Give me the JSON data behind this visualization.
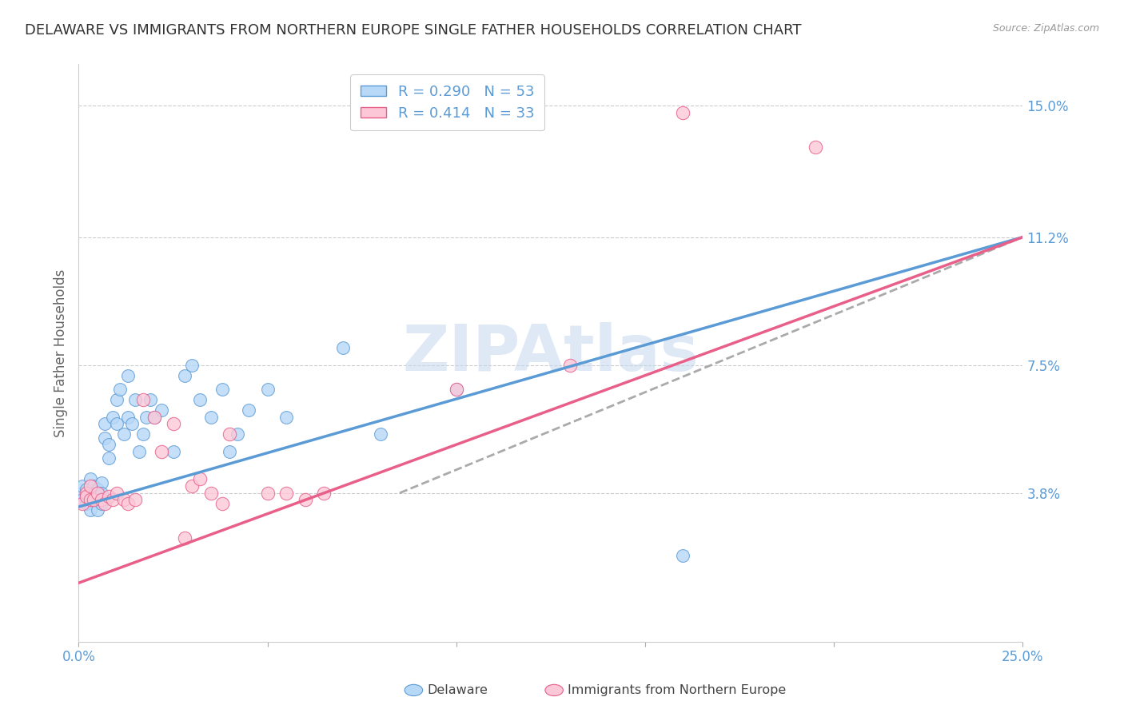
{
  "title": "DELAWARE VS IMMIGRANTS FROM NORTHERN EUROPE SINGLE FATHER HOUSEHOLDS CORRELATION CHART",
  "source": "Source: ZipAtlas.com",
  "ylabel": "Single Father Households",
  "xlim": [
    0.0,
    0.25
  ],
  "ylim": [
    -0.005,
    0.162
  ],
  "xtick_vals": [
    0.0,
    0.05,
    0.1,
    0.15,
    0.2,
    0.25
  ],
  "xtick_labels": [
    "0.0%",
    "",
    "",
    "",
    "",
    "25.0%"
  ],
  "ytick_vals_right": [
    0.038,
    0.075,
    0.112,
    0.15
  ],
  "ytick_labels_right": [
    "3.8%",
    "7.5%",
    "11.2%",
    "15.0%"
  ],
  "del_face": "#b8d8f8",
  "del_edge": "#5b9bd5",
  "imm_face": "#fcc8d8",
  "imm_edge": "#e8608a",
  "del_line_color": "#5b9bd5",
  "imm_line_color": "#e8608a",
  "gray_dash_color": "#aaaaaa",
  "legend_R_del": "0.290",
  "legend_N_del": "53",
  "legend_R_imm": "0.414",
  "legend_N_imm": "33",
  "watermark": "ZIPAtlas",
  "bg_color": "#ffffff",
  "grid_color": "#cccccc",
  "title_fontsize": 13,
  "ylabel_fontsize": 12,
  "tick_fontsize": 12,
  "legend_fontsize": 13,
  "del_x": [
    0.001,
    0.001,
    0.001,
    0.002,
    0.002,
    0.002,
    0.003,
    0.003,
    0.003,
    0.003,
    0.004,
    0.004,
    0.005,
    0.005,
    0.005,
    0.005,
    0.006,
    0.006,
    0.006,
    0.007,
    0.007,
    0.008,
    0.008,
    0.009,
    0.01,
    0.01,
    0.011,
    0.012,
    0.013,
    0.013,
    0.014,
    0.015,
    0.016,
    0.017,
    0.018,
    0.019,
    0.02,
    0.022,
    0.025,
    0.028,
    0.03,
    0.032,
    0.035,
    0.038,
    0.04,
    0.042,
    0.045,
    0.05,
    0.055,
    0.07,
    0.08,
    0.1,
    0.16
  ],
  "del_y": [
    0.038,
    0.04,
    0.036,
    0.037,
    0.039,
    0.035,
    0.042,
    0.038,
    0.036,
    0.033,
    0.04,
    0.038,
    0.039,
    0.037,
    0.036,
    0.033,
    0.041,
    0.038,
    0.035,
    0.058,
    0.054,
    0.048,
    0.052,
    0.06,
    0.065,
    0.058,
    0.068,
    0.055,
    0.072,
    0.06,
    0.058,
    0.065,
    0.05,
    0.055,
    0.06,
    0.065,
    0.06,
    0.062,
    0.05,
    0.072,
    0.075,
    0.065,
    0.06,
    0.068,
    0.05,
    0.055,
    0.062,
    0.068,
    0.06,
    0.08,
    0.055,
    0.068,
    0.02
  ],
  "imm_x": [
    0.001,
    0.002,
    0.002,
    0.003,
    0.003,
    0.004,
    0.005,
    0.006,
    0.007,
    0.008,
    0.009,
    0.01,
    0.012,
    0.013,
    0.015,
    0.017,
    0.02,
    0.022,
    0.025,
    0.028,
    0.03,
    0.032,
    0.035,
    0.038,
    0.04,
    0.05,
    0.055,
    0.06,
    0.065,
    0.1,
    0.13,
    0.16,
    0.195
  ],
  "imm_y": [
    0.035,
    0.038,
    0.037,
    0.04,
    0.036,
    0.036,
    0.038,
    0.036,
    0.035,
    0.037,
    0.036,
    0.038,
    0.036,
    0.035,
    0.036,
    0.065,
    0.06,
    0.05,
    0.058,
    0.025,
    0.04,
    0.042,
    0.038,
    0.035,
    0.055,
    0.038,
    0.038,
    0.036,
    0.038,
    0.068,
    0.075,
    0.148,
    0.138
  ],
  "del_trend_x": [
    0.0,
    0.25
  ],
  "del_trend_y": [
    0.034,
    0.112
  ],
  "imm_trend_x": [
    0.0,
    0.25
  ],
  "imm_trend_y": [
    0.012,
    0.112
  ],
  "bottom_legend_del": "Delaware",
  "bottom_legend_imm": "Immigrants from Northern Europe"
}
